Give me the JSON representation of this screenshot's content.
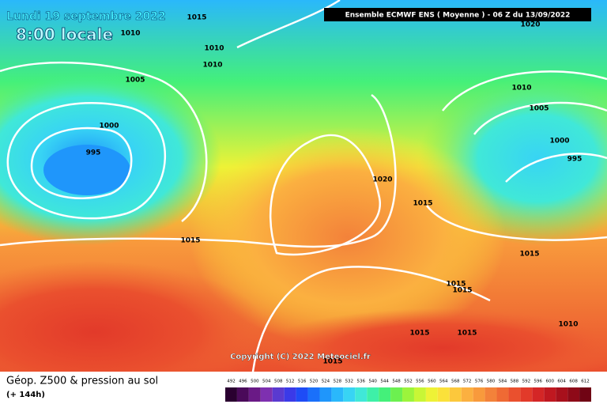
{
  "header": {
    "date": "Lundi 19 septembre 2022",
    "time": "8:00 locale",
    "run": "Ensemble ECMWF ENS  ( Moyenne )  - 06 Z du 13/09/2022"
  },
  "isobars": [
    1015,
    1010,
    1010,
    1010,
    1005,
    1000,
    995,
    1015,
    1020,
    1015,
    1010,
    1005,
    1000,
    995,
    1020,
    1015,
    1015,
    1015,
    1015,
    1015,
    1010,
    1015
  ],
  "copyright": "Copyright (C) 2022 Meteociel.fr",
  "legend": {
    "title": "Géop. Z500 & pression au sol",
    "subtitle": "(+ 144h)",
    "levels": [
      492,
      496,
      500,
      504,
      508,
      512,
      516,
      520,
      524,
      528,
      532,
      536,
      540,
      544,
      548,
      552,
      556,
      560,
      564,
      568,
      572,
      576,
      580,
      584,
      588,
      592,
      596,
      600,
      604,
      608,
      612
    ],
    "colors": [
      "#2a0030",
      "#4a0a5a",
      "#6a1a86",
      "#7e30b0",
      "#5a3ad0",
      "#3a3ae8",
      "#1e4cf6",
      "#1a70fa",
      "#1f96fb",
      "#2ab8fb",
      "#38d4f4",
      "#40e8d8",
      "#3ef0a8",
      "#44f07a",
      "#6cf050",
      "#9cf43c",
      "#c8f636",
      "#eef236",
      "#fbe13a",
      "#fcc83c",
      "#fbb040",
      "#f89a3c",
      "#f3823a",
      "#ef6a34",
      "#ea502e",
      "#e23a2a",
      "#d42626",
      "#c01820",
      "#a8101c",
      "#8e0a18",
      "#700414"
    ]
  }
}
